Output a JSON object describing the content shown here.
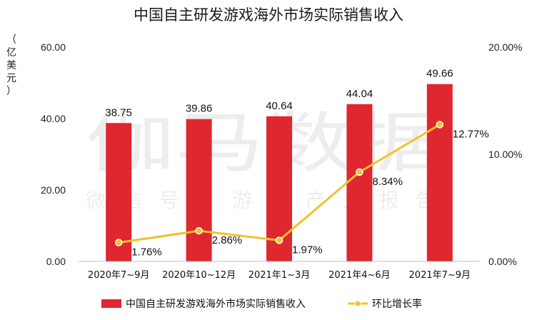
{
  "title": "中国自主研发游戏海外市场实际销售收入",
  "y_unit": "（亿美元）",
  "watermark": {
    "main": "伽马数据",
    "sub": "微信号：游戏产业报告"
  },
  "colors": {
    "bar": "#e0262e",
    "line": "#f3c12b",
    "marker": "#f3c12b",
    "marker_edge": "#ffffff"
  },
  "chart_data": {
    "type": "bar",
    "categories": [
      "2020年7~9月",
      "2020年10~12月",
      "2021年1~3月",
      "2021年4~6月",
      "2021年7~9月"
    ],
    "series": [
      {
        "name": "中国自主研发游戏海外市场实际销售收入",
        "type": "bar",
        "axis": "left",
        "values": [
          38.75,
          39.86,
          40.64,
          44.04,
          49.66
        ],
        "labels": [
          "38.75",
          "39.86",
          "40.64",
          "44.04",
          "49.66"
        ]
      },
      {
        "name": "环比增长率",
        "type": "line",
        "axis": "right",
        "values": [
          1.76,
          2.86,
          1.97,
          8.34,
          12.77
        ],
        "labels": [
          "1.76%",
          "2.86%",
          "1.97%",
          "8.34%",
          "12.77%"
        ]
      }
    ],
    "y_left": {
      "min": 0,
      "max": 60,
      "ticks": [
        "0.00",
        "20.00",
        "40.00",
        "60.00"
      ]
    },
    "y_right": {
      "min": 0,
      "max": 20,
      "ticks": [
        "0.00%",
        "10.00%",
        "20.00%"
      ]
    },
    "grid": false,
    "legend_position": "bottom"
  }
}
